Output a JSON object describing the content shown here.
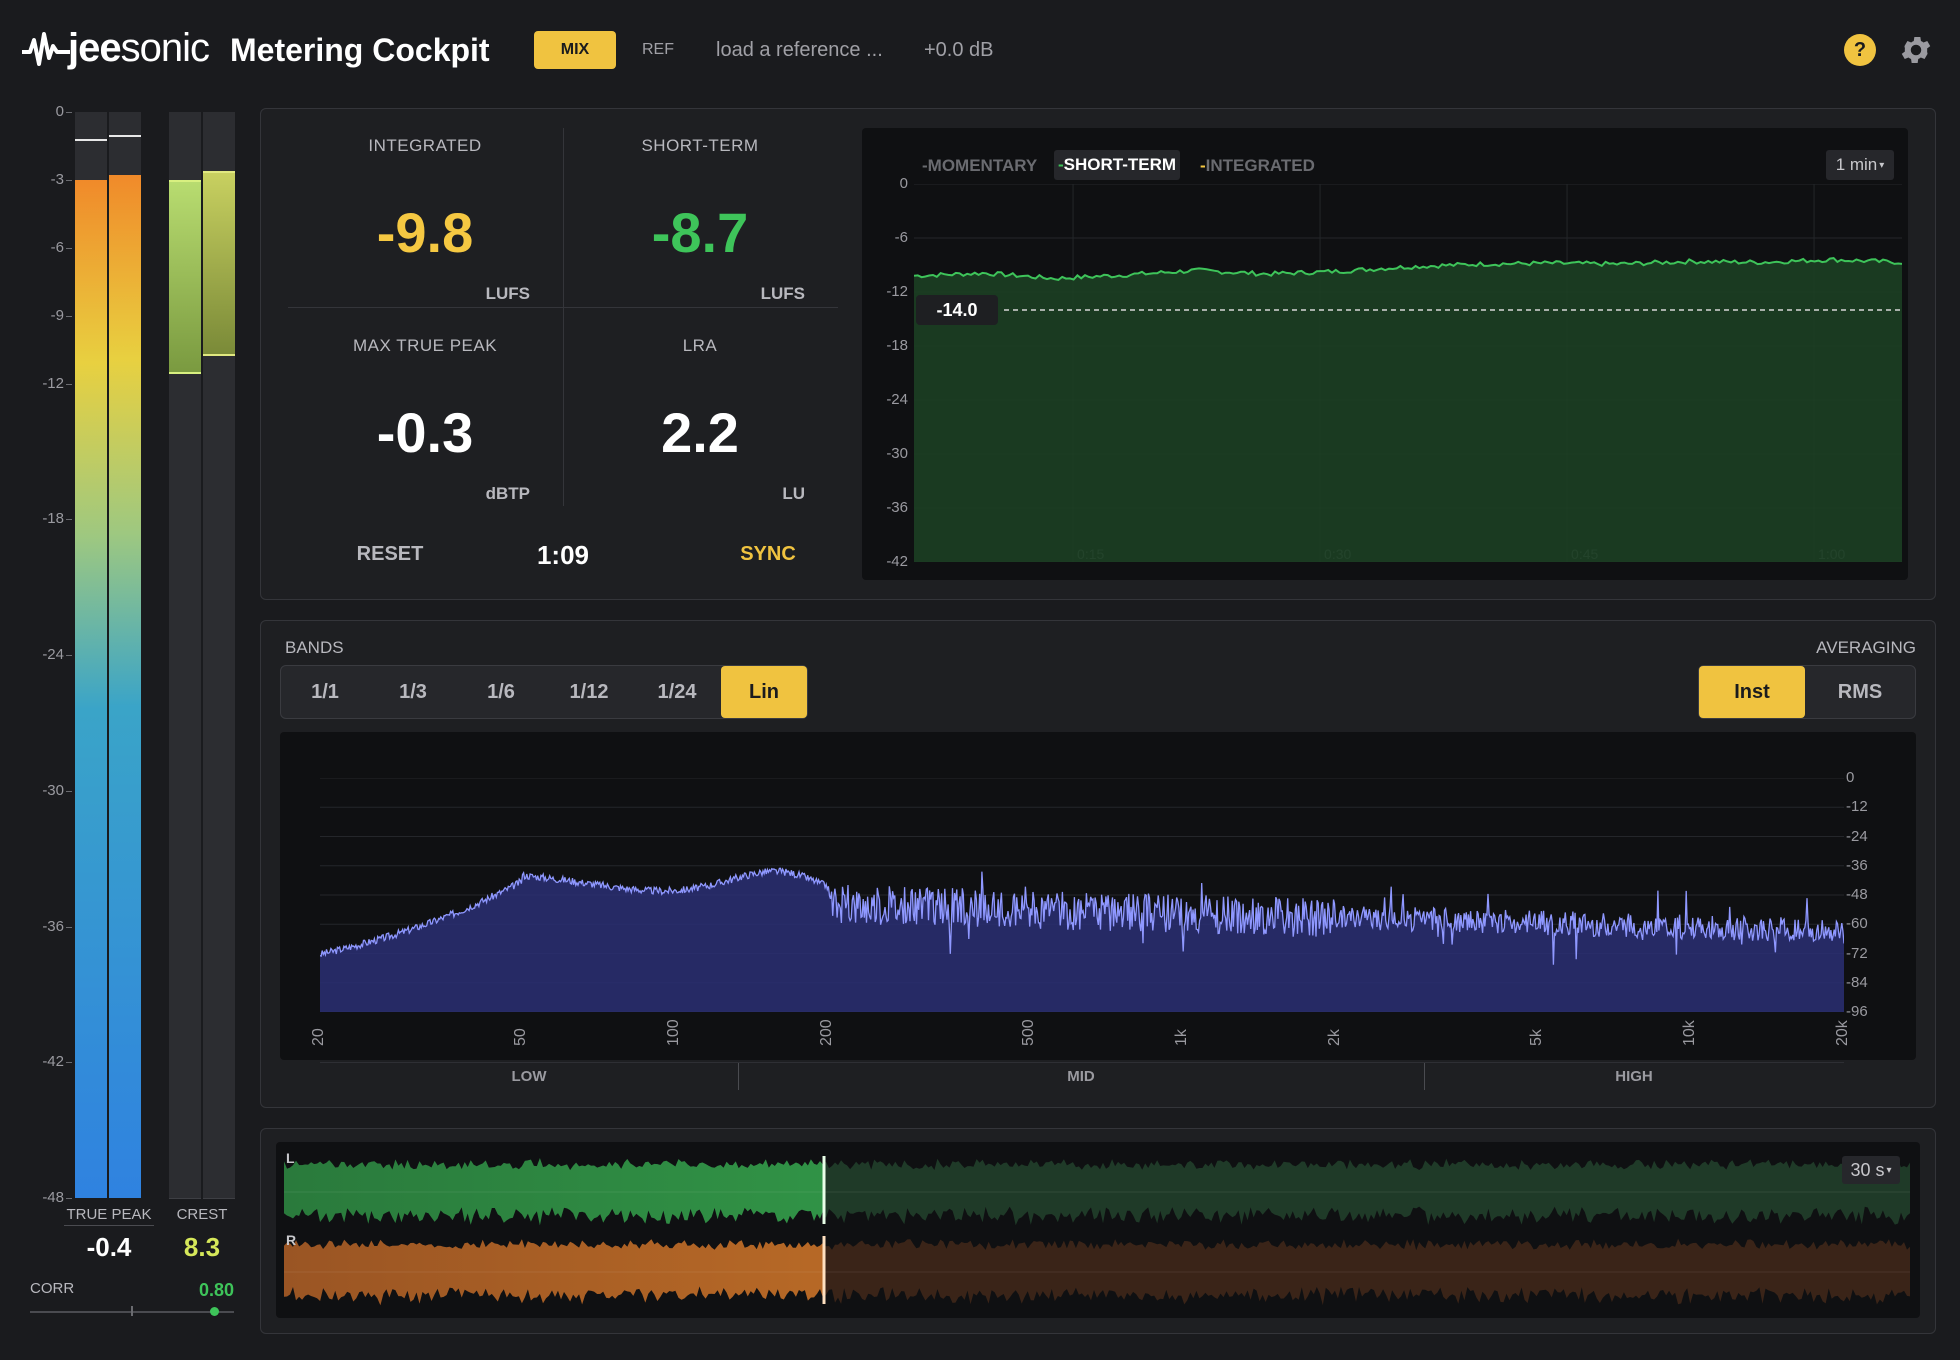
{
  "header": {
    "brand_light": "jee",
    "brand_bold": "sonic",
    "title": "Metering Cockpit",
    "mix_label": "MIX",
    "ref_label": "REF",
    "ref_load": "load a reference ...",
    "ref_gain": "+0.0 dB",
    "help_label": "?"
  },
  "colors": {
    "accent": "#f0c340",
    "green": "#3ec45a",
    "yellow": "#f5c842",
    "spectrum": "#8f98ff"
  },
  "left_meters": {
    "scale": [
      "0",
      "-3",
      "-6",
      "-9",
      "-12",
      "-18",
      "-24",
      "-30",
      "-36",
      "-42",
      "-48"
    ],
    "true_peak_label": "TRUE PEAK",
    "true_peak_value": "-0.4",
    "crest_label": "CREST",
    "crest_value": "8.3",
    "corr_label": "CORR",
    "corr_value": "0.80",
    "levels_db": {
      "tp_left": -3.0,
      "tp_right": -2.8,
      "tp_left_hold": -1.2,
      "tp_right_hold": -1.0,
      "crest_left": -3.0,
      "crest_right": -2.6,
      "crest_left_floor": -11.6,
      "crest_right_floor": -10.8
    }
  },
  "loudness": {
    "integrated": {
      "label": "INTEGRATED",
      "value": "-9.8",
      "unit": "LUFS"
    },
    "short_term": {
      "label": "SHORT-TERM",
      "value": "-8.7",
      "unit": "LUFS"
    },
    "max_true_peak": {
      "label": "MAX TRUE PEAK",
      "value": "-0.3",
      "unit": "dBTP"
    },
    "lra": {
      "label": "LRA",
      "value": "2.2",
      "unit": "LU"
    },
    "reset_label": "RESET",
    "elapsed": "1:09",
    "sync_label": "SYNC"
  },
  "history": {
    "tabs": [
      "MOMENTARY",
      "SHORT-TERM",
      "INTEGRATED"
    ],
    "active_tab": "SHORT-TERM",
    "time_range": "1 min",
    "target_label": "-14.0",
    "y_labels": [
      "0",
      "-6",
      "-12",
      "-18",
      "-24",
      "-30",
      "-36",
      "-42"
    ],
    "x_labels": [
      "0:15",
      "0:30",
      "0:45",
      "1:00"
    ]
  },
  "spectrum": {
    "bands_label": "BANDS",
    "band_options": [
      "1/1",
      "1/3",
      "1/6",
      "1/12",
      "1/24",
      "Lin"
    ],
    "band_active": "Lin",
    "averaging_label": "AVERAGING",
    "averaging_options": [
      "Inst",
      "RMS"
    ],
    "averaging_active": "Inst",
    "db_labels": [
      "0",
      "-12",
      "-24",
      "-36",
      "-48",
      "-60",
      "-72",
      "-84",
      "-96"
    ],
    "freq_labels": [
      "20",
      "50",
      "100",
      "200",
      "500",
      "1k",
      "2k",
      "5k",
      "10k",
      "20k"
    ],
    "ranges": [
      "LOW",
      "MID",
      "HIGH"
    ]
  },
  "waveform": {
    "left_label": "L",
    "right_label": "R",
    "window": "30 s"
  },
  "chart_data": [
    {
      "type": "line",
      "title": "",
      "x": [
        "0:00",
        "0:05",
        "0:10",
        "0:15",
        "0:20",
        "0:25",
        "0:30",
        "0:35",
        "0:40",
        "0:45",
        "0:50",
        "0:55",
        "1:00",
        "1:05",
        "1:09"
      ],
      "series": [
        {
          "name": "SHORT-TERM",
          "values": [
            -10.2,
            -9.9,
            -10.5,
            -10.1,
            -9.6,
            -10.0,
            -9.7,
            -9.2,
            -8.9,
            -8.8,
            -8.9,
            -8.6,
            -8.7,
            -8.4,
            -8.7
          ]
        }
      ],
      "ylim": [
        -42,
        0
      ]
    }
  ]
}
